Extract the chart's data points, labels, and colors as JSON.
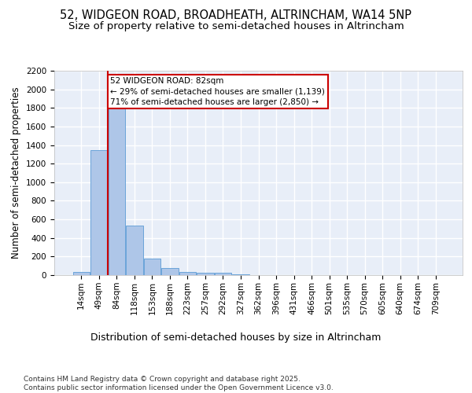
{
  "title_line1": "52, WIDGEON ROAD, BROADHEATH, ALTRINCHAM, WA14 5NP",
  "title_line2": "Size of property relative to semi-detached houses in Altrincham",
  "xlabel": "Distribution of semi-detached houses by size in Altrincham",
  "ylabel": "Number of semi-detached properties",
  "categories": [
    "14sqm",
    "49sqm",
    "84sqm",
    "118sqm",
    "153sqm",
    "188sqm",
    "223sqm",
    "257sqm",
    "292sqm",
    "327sqm",
    "362sqm",
    "396sqm",
    "431sqm",
    "466sqm",
    "501sqm",
    "535sqm",
    "570sqm",
    "605sqm",
    "640sqm",
    "674sqm",
    "709sqm"
  ],
  "values": [
    30,
    1345,
    1790,
    535,
    175,
    80,
    35,
    28,
    22,
    12,
    0,
    0,
    0,
    0,
    0,
    0,
    0,
    0,
    0,
    0,
    0
  ],
  "bar_color": "#aec6e8",
  "bar_edge_color": "#5b9bd5",
  "background_color": "#e8eef8",
  "grid_color": "#ffffff",
  "vline_x": 1.5,
  "vline_color": "#cc0000",
  "annotation_text": "52 WIDGEON ROAD: 82sqm\n← 29% of semi-detached houses are smaller (1,139)\n71% of semi-detached houses are larger (2,850) →",
  "annotation_box_color": "#ffffff",
  "annotation_box_edge": "#cc0000",
  "ylim": [
    0,
    2200
  ],
  "yticks": [
    0,
    200,
    400,
    600,
    800,
    1000,
    1200,
    1400,
    1600,
    1800,
    2000,
    2200
  ],
  "footer": "Contains HM Land Registry data © Crown copyright and database right 2025.\nContains public sector information licensed under the Open Government Licence v3.0.",
  "title_fontsize": 10.5,
  "subtitle_fontsize": 9.5,
  "ylabel_fontsize": 8.5,
  "xlabel_fontsize": 9,
  "tick_fontsize": 7.5,
  "footer_fontsize": 6.5,
  "annot_fontsize": 7.5
}
